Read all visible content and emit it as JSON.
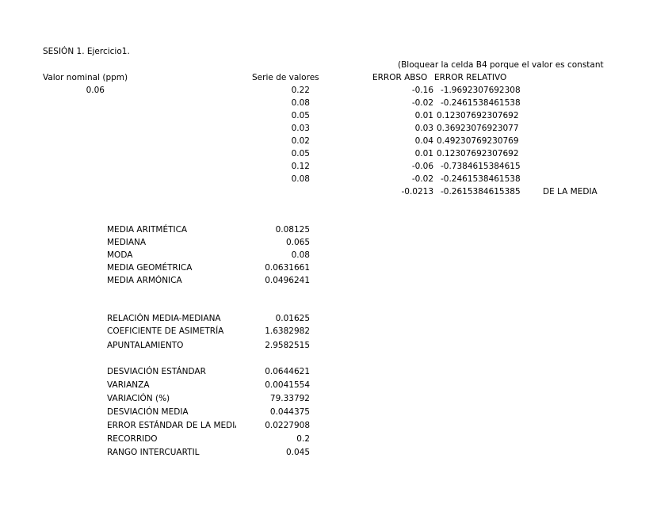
{
  "title": "SESIÓN 1. Ejercicio1.",
  "note": "(Bloquear la celda B4 porque el valor es constant",
  "headers": {
    "nominal": "Valor nominal (ppm)",
    "series": "Serie de valores",
    "abs_error": "ERROR ABSO",
    "rel_error": "ERROR RELATIVO"
  },
  "nominal_value": "0.06",
  "rows": [
    {
      "value": "0.22",
      "abs": "-0.16",
      "rel": "-1.9692307692308"
    },
    {
      "value": "0.08",
      "abs": "-0.02",
      "rel": "-0.2461538461538"
    },
    {
      "value": "0.05",
      "abs": "0.01",
      "rel": "0.12307692307692"
    },
    {
      "value": "0.03",
      "abs": "0.03",
      "rel": "0.36923076923077"
    },
    {
      "value": "0.02",
      "abs": "0.04",
      "rel": "0.49230769230769"
    },
    {
      "value": "0.05",
      "abs": "0.01",
      "rel": "0.12307692307692"
    },
    {
      "value": "0.12",
      "abs": "-0.06",
      "rel": "-0.7384615384615"
    },
    {
      "value": "0.08",
      "abs": "-0.02",
      "rel": "-0.2461538461538"
    }
  ],
  "mean_row": {
    "abs": "-0.0213",
    "rel": "-0.2615384615385",
    "label": "DE LA MEDIA"
  },
  "stats": [
    {
      "label": "MEDIA ARITMÉTICA",
      "value": "0.08125"
    },
    {
      "label": "MEDIANA",
      "value": "0.065"
    },
    {
      "label": "MODA",
      "value": "0.08"
    },
    {
      "label": "MEDIA GEOMÉTRICA",
      "value": "0.0631661"
    },
    {
      "label": "MEDIA  ARMÓNICA",
      "value": "0.0496241"
    },
    {
      "label": "RELACIÓN MEDIA-MEDIANA",
      "value": "0.01625"
    },
    {
      "label": "COEFICIENTE DE ASIMETRÍA",
      "value": "1.6382982"
    },
    {
      "label": "APUNTALAMIENTO",
      "value": "2.9582515"
    },
    {
      "label": "DESVIACIÓN ESTÁNDAR",
      "value": "0.0644621"
    },
    {
      "label": "VARIANZA",
      "value": "0.0041554"
    },
    {
      "label": "VARIACIÓN (%)",
      "value": "79.33792"
    },
    {
      "label": "DESVIACIÓN MEDIA",
      "value": "0.044375"
    },
    {
      "label": "ERROR ESTÁNDAR DE LA MEDIA",
      "value": "0.0227908"
    },
    {
      "label": "RECORRIDO",
      "value": "0.2"
    },
    {
      "label": "RANGO INTERCUARTIL",
      "value": "0.045"
    }
  ]
}
